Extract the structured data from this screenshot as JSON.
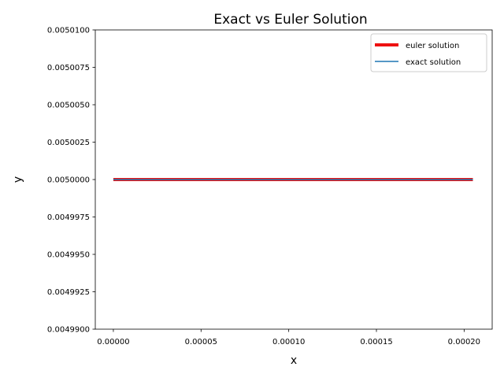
{
  "chart_data": {
    "type": "line",
    "title": "Exact vs Euler Solution",
    "xlabel": "x",
    "ylabel": "y",
    "xlim": [
      -1.03e-05,
      0.000216
    ],
    "ylim": [
      0.00499,
      0.00501
    ],
    "x_ticks": [
      0.0,
      5e-05,
      0.0001,
      0.00015,
      0.0002
    ],
    "x_tick_labels": [
      "0.00000",
      "0.00005",
      "0.00010",
      "0.00015",
      "0.00020"
    ],
    "y_ticks": [
      0.00499,
      0.0049925,
      0.004995,
      0.0049975,
      0.005,
      0.0050025,
      0.005005,
      0.0050075,
      0.00501
    ],
    "y_tick_labels": [
      "0.0049900",
      "0.0049925",
      "0.0049950",
      "0.0049975",
      "0.0050000",
      "0.0050025",
      "0.0050050",
      "0.0050075",
      "0.0050100"
    ],
    "grid": false,
    "legend_position": "top-right",
    "series": [
      {
        "name": "euler solution",
        "color": "#ee1111",
        "x": [
          0.0,
          0.000205
        ],
        "y": [
          0.005,
          0.005
        ]
      },
      {
        "name": "exact solution",
        "color": "#1f77b4",
        "x": [
          0.0,
          0.000205
        ],
        "y": [
          0.005,
          0.005
        ]
      }
    ]
  }
}
